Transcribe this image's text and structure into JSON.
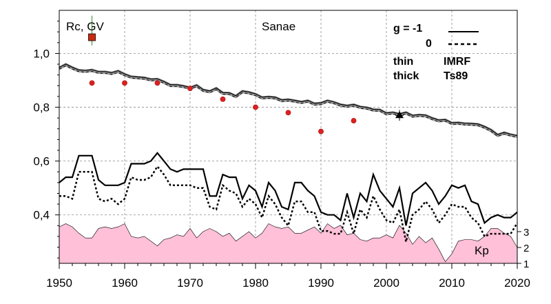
{
  "chart_data": {
    "type": "line",
    "title": "Sanae",
    "ylabel": "Rc, GV",
    "xlim": [
      1950,
      2020
    ],
    "ylim": [
      0.22,
      1.16
    ],
    "xticks": [
      "1950",
      "1960",
      "1970",
      "1980",
      "1990",
      "2000",
      "2010",
      "2020"
    ],
    "yticks": [
      "0,4",
      "0,6",
      "0,8",
      "1,0"
    ],
    "grid": true,
    "legend": {
      "row1_label": "g  = -1",
      "row2_label": "0",
      "thin_label": "thin",
      "thick_label": "thick",
      "imrf_label": "IMRF",
      "ts89_label": "Ts89"
    },
    "kp_label": "Kp",
    "kp_ticks": [
      "1",
      "2",
      "3"
    ],
    "kp_range": [
      1,
      3
    ],
    "colors": {
      "kp_fill": "#ffc0d8",
      "markers": "#dd2020",
      "band": "#a0a0a0"
    },
    "series": [
      {
        "x": [
          1950,
          1951,
          1952,
          1953,
          1954,
          1955,
          1956,
          1957,
          1958,
          1959,
          1960,
          1961,
          1962,
          1963,
          1964,
          1965,
          1966,
          1967,
          1968,
          1969,
          1970,
          1971,
          1972,
          1973,
          1974,
          1975,
          1976,
          1977,
          1978,
          1979,
          1980,
          1981,
          1982,
          1983,
          1984,
          1985,
          1986,
          1987,
          1988,
          1989,
          1990,
          1991,
          1992,
          1993,
          1994,
          1995,
          1996,
          1997,
          1998,
          1999,
          2000,
          2001,
          2002,
          2003,
          2004,
          2005,
          2006,
          2007,
          2008,
          2009,
          2010,
          2011,
          2012,
          2013,
          2014,
          2015,
          2016,
          2017,
          2018,
          2019,
          2020
        ],
        "values": [
          0.945,
          0.958,
          0.946,
          0.936,
          0.934,
          0.937,
          0.93,
          0.93,
          0.926,
          0.933,
          0.921,
          0.912,
          0.91,
          0.908,
          0.902,
          0.903,
          0.893,
          0.881,
          0.881,
          0.877,
          0.871,
          0.88,
          0.863,
          0.858,
          0.869,
          0.852,
          0.851,
          0.84,
          0.858,
          0.854,
          0.847,
          0.835,
          0.837,
          0.835,
          0.825,
          0.827,
          0.823,
          0.818,
          0.823,
          0.812,
          0.814,
          0.823,
          0.817,
          0.808,
          0.804,
          0.808,
          0.8,
          0.797,
          0.79,
          0.789,
          0.776,
          0.779,
          0.773,
          0.779,
          0.767,
          0.77,
          0.768,
          0.758,
          0.75,
          0.752,
          0.74,
          0.741,
          0.738,
          0.737,
          0.735,
          0.726,
          0.714,
          0.696,
          0.704,
          0.697,
          0.692
        ]
      },
      {
        "x": [
          1950,
          1951,
          1952,
          1953,
          1954,
          1955,
          1956,
          1957,
          1958,
          1959,
          1960,
          1961,
          1962,
          1963,
          1964,
          1965,
          1966,
          1967,
          1968,
          1969,
          1970,
          1971,
          1972,
          1973,
          1974,
          1975,
          1976,
          1977,
          1978,
          1979,
          1980,
          1981,
          1982,
          1983,
          1984,
          1985,
          1986,
          1987,
          1988,
          1989,
          1990,
          1991,
          1992,
          1993,
          1994,
          1995,
          1996,
          1997,
          1998,
          1999,
          2000,
          2001,
          2002,
          2003,
          2004,
          2005,
          2006,
          2007,
          2008,
          2009,
          2010,
          2011,
          2012,
          2013,
          2014,
          2015,
          2016,
          2017,
          2018,
          2019,
          2020
        ],
        "values": [
          0.52,
          0.54,
          0.54,
          0.62,
          0.62,
          0.62,
          0.53,
          0.51,
          0.51,
          0.51,
          0.52,
          0.59,
          0.59,
          0.59,
          0.6,
          0.63,
          0.6,
          0.57,
          0.56,
          0.57,
          0.57,
          0.57,
          0.57,
          0.47,
          0.47,
          0.55,
          0.54,
          0.54,
          0.46,
          0.51,
          0.49,
          0.43,
          0.52,
          0.49,
          0.43,
          0.42,
          0.52,
          0.52,
          0.49,
          0.47,
          0.41,
          0.4,
          0.4,
          0.38,
          0.48,
          0.39,
          0.48,
          0.45,
          0.55,
          0.49,
          0.46,
          0.43,
          0.5,
          0.36,
          0.48,
          0.5,
          0.52,
          0.49,
          0.44,
          0.47,
          0.51,
          0.5,
          0.51,
          0.45,
          0.44,
          0.37,
          0.39,
          0.4,
          0.39,
          0.39,
          0.41
        ]
      },
      {
        "x": [
          1950,
          1951,
          1952,
          1953,
          1954,
          1955,
          1956,
          1957,
          1958,
          1959,
          1960,
          1961,
          1962,
          1963,
          1964,
          1965,
          1966,
          1967,
          1968,
          1969,
          1970,
          1971,
          1972,
          1973,
          1974,
          1975,
          1976,
          1977,
          1978,
          1979,
          1980,
          1981,
          1982,
          1983,
          1984,
          1985,
          1986,
          1987,
          1988,
          1989,
          1990,
          1991,
          1992,
          1993,
          1994,
          1995,
          1996,
          1997,
          1998,
          1999,
          2000,
          2001,
          2002,
          2003,
          2004,
          2005,
          2006,
          2007,
          2008,
          2009,
          2010,
          2011,
          2012,
          2013,
          2014,
          2015,
          2016,
          2017,
          2018,
          2019,
          2020
        ],
        "values": [
          0.47,
          0.47,
          0.46,
          0.56,
          0.56,
          0.56,
          0.46,
          0.45,
          0.46,
          0.44,
          0.46,
          0.54,
          0.53,
          0.53,
          0.54,
          0.58,
          0.55,
          0.51,
          0.51,
          0.51,
          0.51,
          0.5,
          0.5,
          0.43,
          0.42,
          0.51,
          0.49,
          0.48,
          0.43,
          0.46,
          0.44,
          0.39,
          0.47,
          0.44,
          0.39,
          0.36,
          0.45,
          0.45,
          0.41,
          0.41,
          0.34,
          0.34,
          0.33,
          0.33,
          0.41,
          0.33,
          0.42,
          0.39,
          0.47,
          0.42,
          0.38,
          0.37,
          0.42,
          0.3,
          0.4,
          0.42,
          0.45,
          0.42,
          0.37,
          0.4,
          0.44,
          0.43,
          0.43,
          0.39,
          0.37,
          0.32,
          0.33,
          0.33,
          0.33,
          0.33,
          0.37
        ]
      },
      {
        "type": "scatter",
        "x": [
          1955,
          1960,
          1965,
          1970,
          1975,
          1980,
          1985,
          1990,
          1995
        ],
        "values": [
          0.89,
          0.89,
          0.89,
          0.87,
          0.83,
          0.8,
          0.78,
          0.71,
          0.75
        ]
      },
      {
        "type": "point",
        "x": [
          1955
        ],
        "values": [
          1.06
        ],
        "error": [
          1.03,
          1.14
        ]
      },
      {
        "type": "point",
        "x": [
          2002
        ],
        "values": [
          0.77
        ],
        "error": [
          0.75,
          0.79
        ]
      },
      {
        "type": "area",
        "axis": "kp",
        "x": [
          1950,
          1951,
          1952,
          1953,
          1954,
          1955,
          1956,
          1957,
          1958,
          1959,
          1960,
          1961,
          1962,
          1963,
          1964,
          1965,
          1966,
          1967,
          1968,
          1969,
          1970,
          1971,
          1972,
          1973,
          1974,
          1975,
          1976,
          1977,
          1978,
          1979,
          1980,
          1981,
          1982,
          1983,
          1984,
          1985,
          1986,
          1987,
          1988,
          1989,
          1990,
          1991,
          1992,
          1993,
          1994,
          1995,
          1996,
          1997,
          1998,
          1999,
          2000,
          2001,
          2002,
          2003,
          2004,
          2005,
          2006,
          2007,
          2008,
          2009,
          2010,
          2011,
          2012,
          2013,
          2014,
          2015,
          2016,
          2017,
          2018,
          2019,
          2020
        ],
        "values": [
          3.3,
          3.5,
          3.3,
          2.9,
          2.6,
          2.6,
          3.2,
          3.3,
          3.2,
          3.3,
          3.5,
          2.7,
          2.6,
          2.7,
          2.4,
          2.1,
          2.5,
          2.6,
          2.8,
          2.7,
          3.2,
          2.6,
          3.0,
          3.2,
          3.0,
          2.7,
          2.9,
          2.4,
          2.7,
          3.0,
          2.6,
          2.9,
          3.5,
          3.3,
          3.2,
          3.3,
          2.9,
          2.9,
          3.1,
          3.3,
          2.9,
          3.5,
          3.2,
          3.4,
          2.8,
          2.9,
          2.5,
          2.4,
          2.6,
          2.6,
          2.8,
          2.6,
          3.4,
          2.9,
          2.2,
          2.7,
          2.3,
          2.6,
          1.9,
          1.1,
          1.6,
          2.4,
          2.5,
          2.5,
          2.4,
          2.7,
          3.2,
          3.2,
          2.9,
          2.7,
          2.0
        ]
      }
    ]
  }
}
